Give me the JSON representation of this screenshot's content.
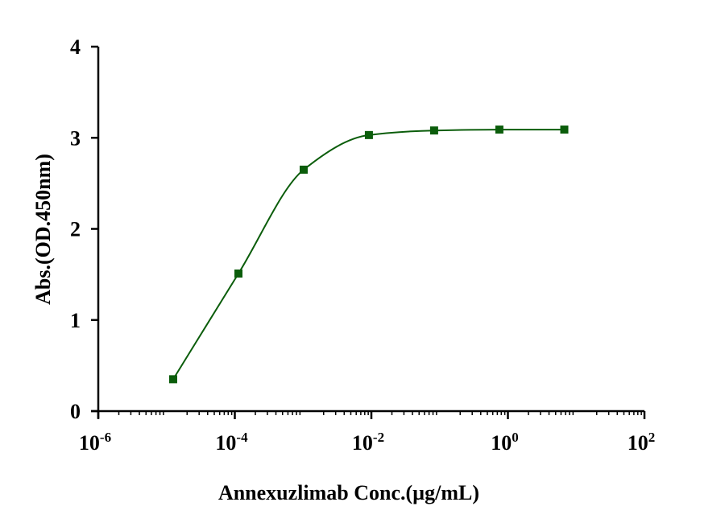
{
  "chart_data": {
    "type": "scatter",
    "title": "",
    "xlabel": "Annexuzlimab Conc.(µg/mL)",
    "ylabel": "Abs.(OD.450nm)",
    "x_scale": "log10",
    "xlim": [
      1e-06,
      100
    ],
    "ylim": [
      0,
      4
    ],
    "x_ticks": [
      {
        "base": "10",
        "exp": "-6",
        "value": 1e-06
      },
      {
        "base": "10",
        "exp": "-4",
        "value": 0.0001
      },
      {
        "base": "10",
        "exp": "-2",
        "value": 0.01
      },
      {
        "base": "10",
        "exp": "0",
        "value": 1
      },
      {
        "base": "10",
        "exp": "2",
        "value": 100
      }
    ],
    "y_ticks": [
      "0",
      "1",
      "2",
      "3",
      "4"
    ],
    "grid": false,
    "series": [
      {
        "color": "#0b5d0b",
        "marker": "square",
        "fit": "4PL sigmoid",
        "points": [
          {
            "x": 1.25e-05,
            "y": 0.35
          },
          {
            "x": 0.000113,
            "y": 1.51
          },
          {
            "x": 0.00102,
            "y": 2.65
          },
          {
            "x": 0.0092,
            "y": 3.03
          },
          {
            "x": 0.083,
            "y": 3.08
          },
          {
            "x": 0.75,
            "y": 3.09
          },
          {
            "x": 6.7,
            "y": 3.09
          }
        ]
      }
    ]
  }
}
